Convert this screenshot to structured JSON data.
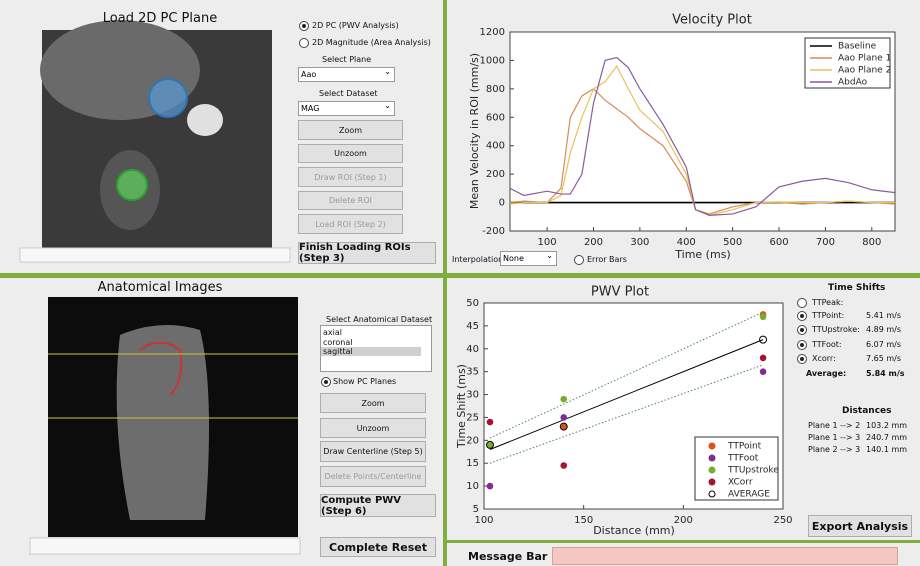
{
  "pc_panel": {
    "title": "Load 2D PC Plane",
    "radio_options": [
      "2D PC (PWV Analysis)",
      "2D Magnitude (Area Analysis)"
    ],
    "plane_label": "Select Plane",
    "plane_value": "Aao",
    "dataset_label": "Select Dataset",
    "dataset_value": "MAG",
    "buttons": [
      "Zoom",
      "Unzoom",
      "Draw ROI (Step 1)",
      "Delete ROI",
      "Load ROI (Step 2)"
    ],
    "finish_button": "Finish Loading ROIs (Step 3)"
  },
  "velocity_plot": {
    "type": "line",
    "title": "Velocity Plot",
    "x_label": "Time (ms)",
    "y_label": "Mean Velocity in ROI (mm/s)",
    "x": [
      20,
      50,
      100,
      130,
      150,
      175,
      200,
      225,
      250,
      275,
      300,
      350,
      400,
      420,
      450,
      500,
      550,
      600,
      650,
      700,
      750,
      800,
      850
    ],
    "xlim": [
      20,
      850
    ],
    "xticks": [
      100,
      200,
      300,
      400,
      500,
      600,
      700,
      800
    ],
    "ylim": [
      -200,
      1200
    ],
    "yticks": [
      -200,
      0,
      200,
      400,
      600,
      800,
      1000,
      1200
    ],
    "series": [
      {
        "name": "Baseline",
        "color": "#000000",
        "values": [
          0,
          0,
          0,
          0,
          0,
          0,
          0,
          0,
          0,
          0,
          0,
          0,
          0,
          0,
          0,
          0,
          0,
          0,
          0,
          0,
          0,
          0,
          0
        ]
      },
      {
        "name": "Aao Plane 1",
        "color": "#d98a5a",
        "values": [
          0,
          10,
          0,
          100,
          600,
          750,
          800,
          720,
          660,
          600,
          520,
          400,
          150,
          -50,
          -80,
          -30,
          0,
          0,
          -10,
          0,
          10,
          0,
          -10
        ]
      },
      {
        "name": "Aao Plane 2",
        "color": "#e8c25a",
        "values": [
          -10,
          0,
          0,
          50,
          350,
          600,
          800,
          850,
          960,
          800,
          650,
          500,
          200,
          -50,
          -90,
          -50,
          0,
          5,
          0,
          0,
          10,
          0,
          0
        ]
      },
      {
        "name": "AbdAo",
        "color": "#8a5a9e",
        "values": [
          100,
          50,
          80,
          60,
          60,
          200,
          700,
          1000,
          1020,
          950,
          800,
          550,
          250,
          -50,
          -90,
          -80,
          -30,
          110,
          150,
          170,
          140,
          90,
          70
        ]
      }
    ],
    "interpolation_label": "Interpolation:",
    "interpolation_value": "None",
    "error_bars_label": "Error Bars"
  },
  "anatomical_panel": {
    "title": "Anatomical Images",
    "dataset_label": "Select Anatomical Dataset",
    "datasets": [
      "axial",
      "coronal",
      "sagittal"
    ],
    "show_planes_label": "Show PC Planes",
    "buttons": [
      "Zoom",
      "Unzoom",
      "Draw Centerline (Step 5)",
      "Delete Points/Centerline"
    ],
    "compute_button": "Compute PWV (Step 6)",
    "reset_button": "Complete Reset"
  },
  "pwv_plot": {
    "type": "scatter",
    "title": "PWV Plot",
    "x_label": "Distance (mm)",
    "y_label": "Time Shift (ms)",
    "xlim": [
      100,
      250
    ],
    "xticks": [
      100,
      150,
      200,
      250
    ],
    "ylim": [
      5,
      50
    ],
    "yticks": [
      5,
      10,
      15,
      20,
      25,
      30,
      35,
      40,
      45,
      50
    ],
    "series": [
      {
        "name": "TTPoint",
        "color": "#d95319",
        "x": [
          103,
          140,
          240
        ],
        "values": [
          19,
          23,
          47.5
        ]
      },
      {
        "name": "TTFoot",
        "color": "#7e2f8e",
        "x": [
          103,
          140,
          240
        ],
        "values": [
          10,
          25,
          35
        ]
      },
      {
        "name": "TTUpstroke",
        "color": "#77ac30",
        "x": [
          103,
          140,
          240
        ],
        "values": [
          19,
          29,
          47
        ]
      },
      {
        "name": "XCorr",
        "color": "#a2142f",
        "x": [
          103,
          140,
          240
        ],
        "values": [
          24,
          14.5,
          38
        ]
      },
      {
        "name": "AVERAGE",
        "color": "#000000",
        "x": [
          103,
          140,
          240
        ],
        "values": [
          19,
          23,
          42
        ]
      }
    ],
    "fit_line": {
      "x": [
        103,
        240
      ],
      "values": [
        18,
        42
      ]
    },
    "bounds": [
      {
        "x": [
          103,
          240
        ],
        "values": [
          20.5,
          48
        ]
      },
      {
        "x": [
          103,
          240
        ],
        "values": [
          15,
          36.5
        ]
      }
    ]
  },
  "time_shifts": {
    "title": "Time Shifts",
    "rows": [
      [
        "TTPeak:"
      ],
      [
        "TTPoint:",
        "5.41 m/s"
      ],
      [
        "TTUpstroke:",
        "4.89 m/s"
      ],
      [
        "TTFoot:",
        "6.07 m/s"
      ],
      [
        "Xcorr:",
        "7.65 m/s"
      ]
    ],
    "checked": [
      false,
      true,
      true,
      true,
      true
    ],
    "average_label": "Average:",
    "average_value": "5.84 m/s"
  },
  "distances": {
    "title": "Distances",
    "rows": [
      [
        "Plane 1 --> 2",
        "103.2 mm"
      ],
      [
        "Plane 1 --> 3",
        "240.7 mm"
      ],
      [
        "Plane 2 --> 3",
        "140.1 mm"
      ]
    ]
  },
  "export_button": "Export Analysis",
  "message_bar": "Message Bar"
}
